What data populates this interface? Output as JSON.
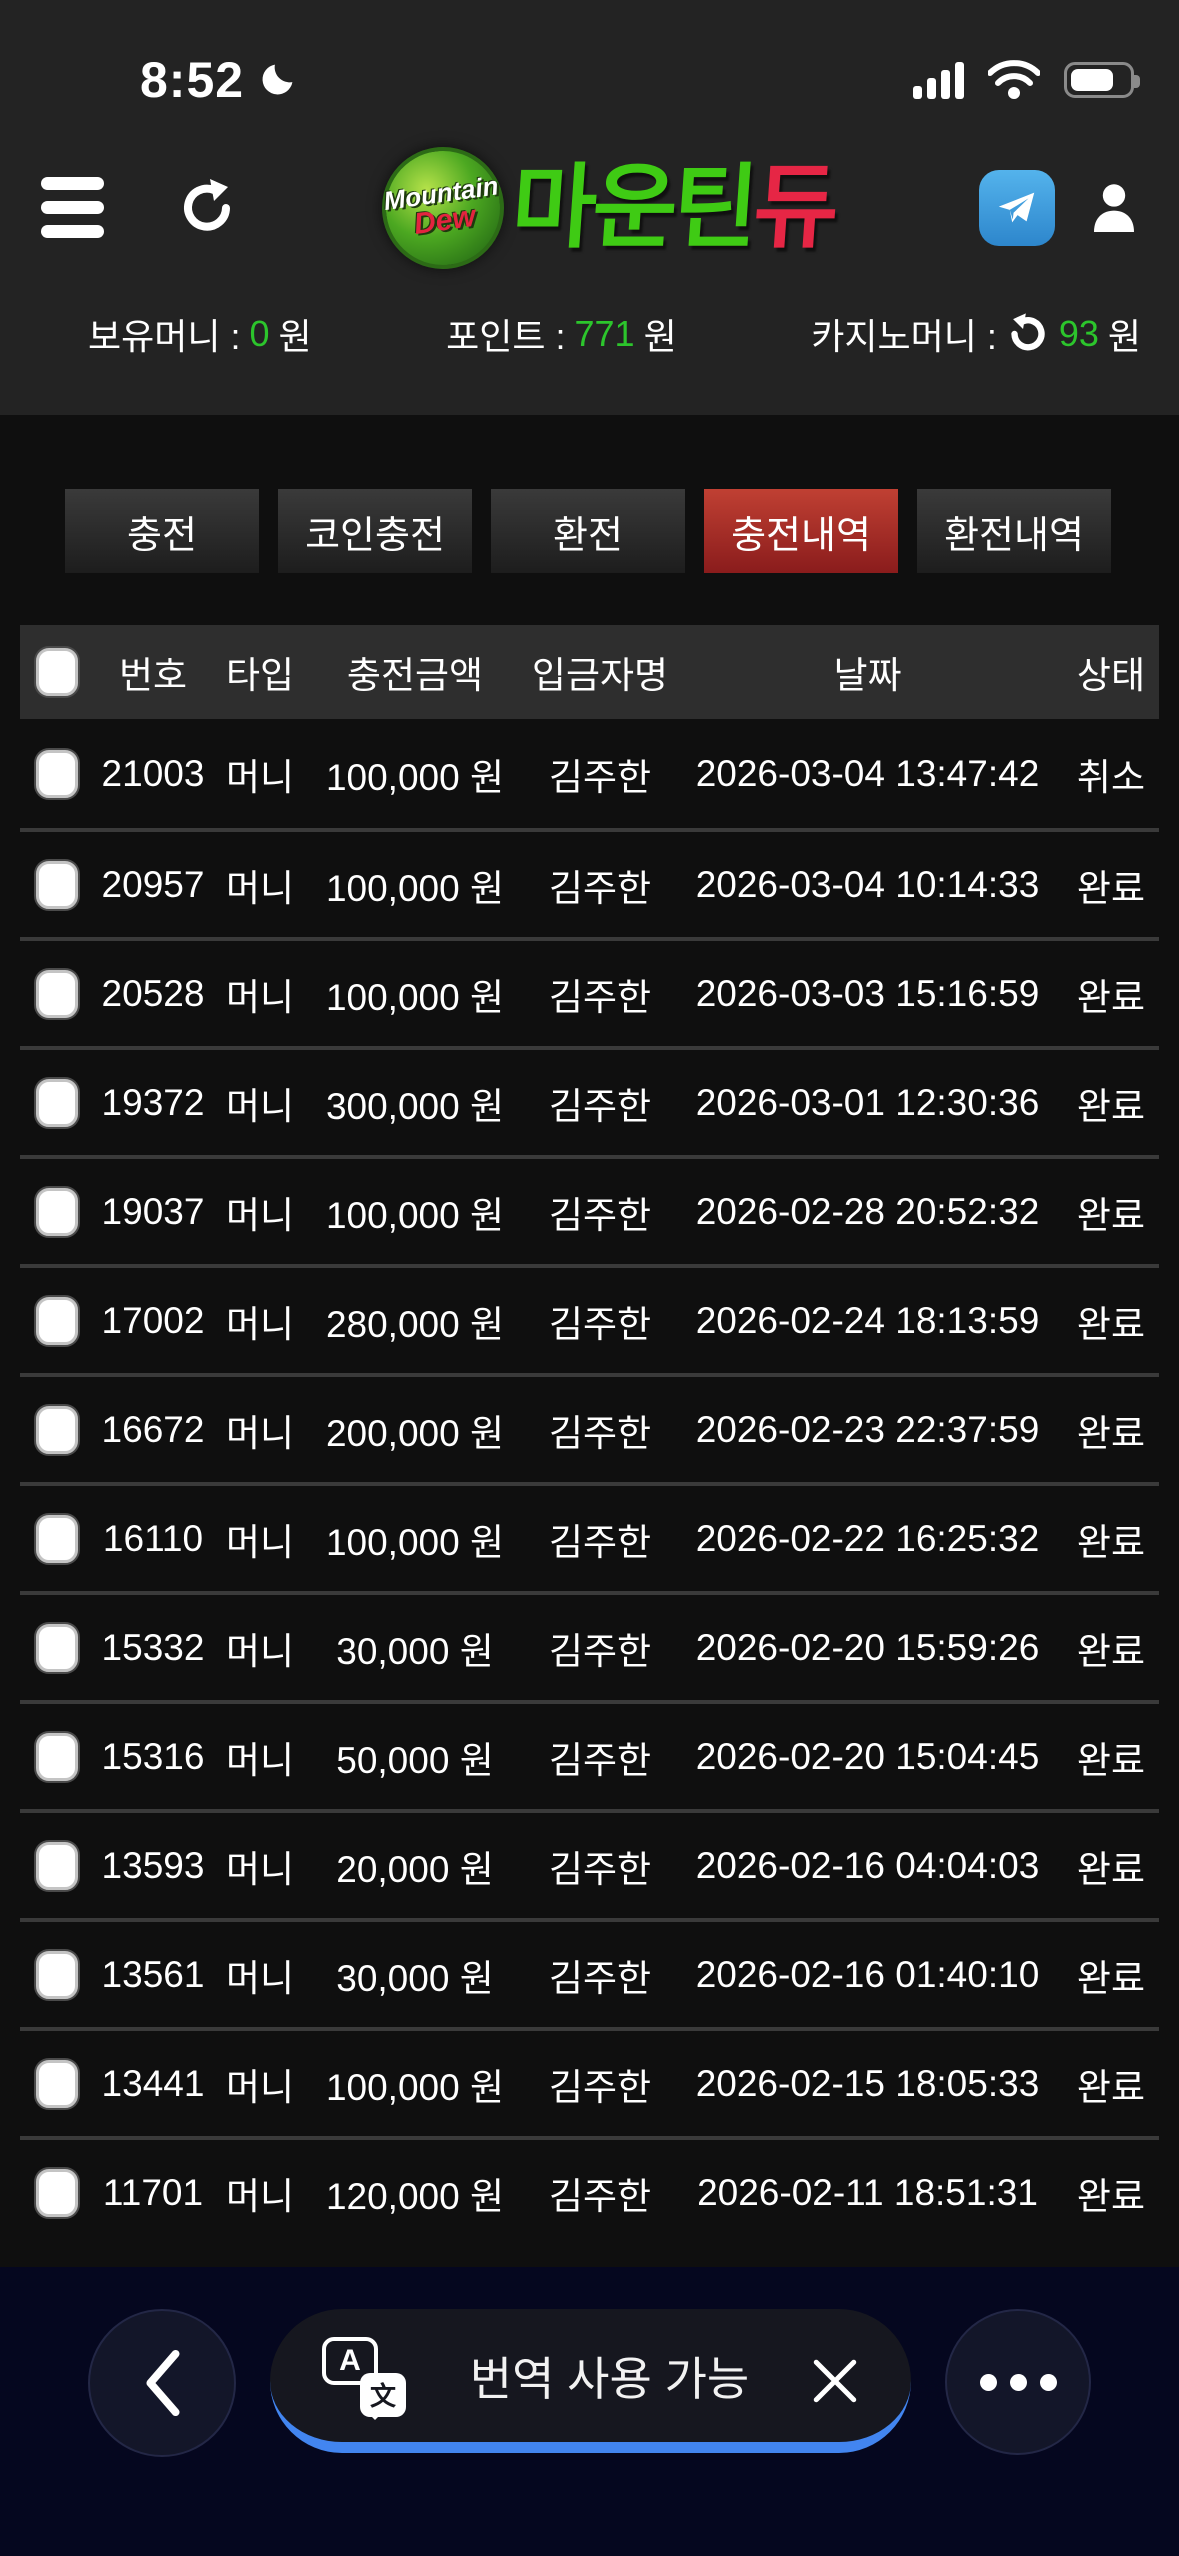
{
  "status_bar": {
    "time": "8:52",
    "moon_icon": "crescent-moon",
    "signal_icon": "cellular-signal-4-bars",
    "wifi_icon": "wifi",
    "battery_icon": "battery-65-percent"
  },
  "header": {
    "menu_icon": "hamburger-menu",
    "refresh_icon": "refresh-clockwise",
    "logo_badge_line1": "Mountain",
    "logo_badge_line2": "Dew",
    "logo_text_green": "마운틴",
    "logo_text_red": "듀",
    "telegram_icon": "telegram",
    "profile_icon": "person"
  },
  "balance": {
    "money_label": "보유머니 :",
    "money_value": "0",
    "points_label": "포인트 :",
    "points_value": "771",
    "casino_label": "카지노머니 :",
    "casino_refresh_icon": "refresh-counterclockwise",
    "casino_value": "93",
    "won_suffix": "원",
    "value_color": "#2cc52c"
  },
  "tabs": {
    "items": [
      "충전",
      "코인충전",
      "환전",
      "충전내역",
      "환전내역"
    ],
    "active_index": 3,
    "active_color": "#a12525"
  },
  "table": {
    "headers": [
      "번호",
      "타입",
      "충전금액",
      "입금자명",
      "날짜",
      "상태"
    ],
    "rows": [
      {
        "no": "21003",
        "type": "머니",
        "amount": "100,000 원",
        "depositor": "김주한",
        "date": "2026-03-04 13:47:42",
        "status": "취소"
      },
      {
        "no": "20957",
        "type": "머니",
        "amount": "100,000 원",
        "depositor": "김주한",
        "date": "2026-03-04 10:14:33",
        "status": "완료"
      },
      {
        "no": "20528",
        "type": "머니",
        "amount": "100,000 원",
        "depositor": "김주한",
        "date": "2026-03-03 15:16:59",
        "status": "완료"
      },
      {
        "no": "19372",
        "type": "머니",
        "amount": "300,000 원",
        "depositor": "김주한",
        "date": "2026-03-01 12:30:36",
        "status": "완료"
      },
      {
        "no": "19037",
        "type": "머니",
        "amount": "100,000 원",
        "depositor": "김주한",
        "date": "2026-02-28 20:52:32",
        "status": "완료"
      },
      {
        "no": "17002",
        "type": "머니",
        "amount": "280,000 원",
        "depositor": "김주한",
        "date": "2026-02-24 18:13:59",
        "status": "완료"
      },
      {
        "no": "16672",
        "type": "머니",
        "amount": "200,000 원",
        "depositor": "김주한",
        "date": "2026-02-23 22:37:59",
        "status": "완료"
      },
      {
        "no": "16110",
        "type": "머니",
        "amount": "100,000 원",
        "depositor": "김주한",
        "date": "2026-02-22 16:25:32",
        "status": "완료"
      },
      {
        "no": "15332",
        "type": "머니",
        "amount": "30,000 원",
        "depositor": "김주한",
        "date": "2026-02-20 15:59:26",
        "status": "완료"
      },
      {
        "no": "15316",
        "type": "머니",
        "amount": "50,000 원",
        "depositor": "김주한",
        "date": "2026-02-20 15:04:45",
        "status": "완료"
      },
      {
        "no": "13593",
        "type": "머니",
        "amount": "20,000 원",
        "depositor": "김주한",
        "date": "2026-02-16 04:04:03",
        "status": "완료"
      },
      {
        "no": "13561",
        "type": "머니",
        "amount": "30,000 원",
        "depositor": "김주한",
        "date": "2026-02-16 01:40:10",
        "status": "완료"
      },
      {
        "no": "13441",
        "type": "머니",
        "amount": "100,000 원",
        "depositor": "김주한",
        "date": "2026-02-15 18:05:33",
        "status": "완료"
      },
      {
        "no": "11701",
        "type": "머니",
        "amount": "120,000 원",
        "depositor": "김주한",
        "date": "2026-02-11 18:51:31",
        "status": "완료"
      }
    ]
  },
  "bottom_bar": {
    "back_icon": "chevron-left",
    "translate_icon": "translate",
    "translate_label": "번역 사용 가능",
    "close_icon": "close-x",
    "more_icon": "ellipsis-more",
    "accent_color": "#4285f0"
  }
}
